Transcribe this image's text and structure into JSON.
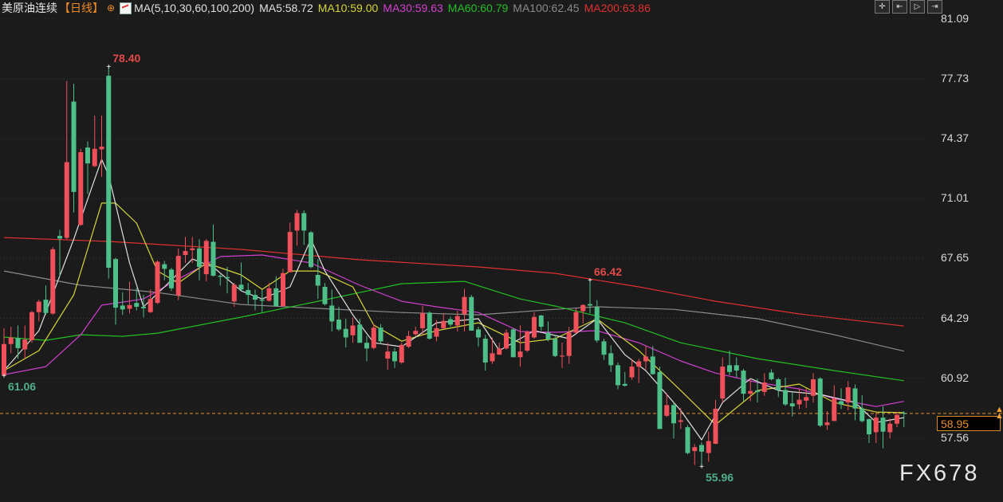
{
  "header": {
    "symbol": "美原油连续",
    "period": "【日线】",
    "ma_params": "MA(5,10,30,60,100,200)",
    "ma5": "MA5:58.72",
    "ma10": "MA10:59.00",
    "ma30": "MA30:59.63",
    "ma60": "MA60:60.79",
    "ma100": "MA100:62.45",
    "ma200": "MA200:63.86"
  },
  "toolbar": {
    "icons": [
      "crosshair-icon",
      "jump-start-icon",
      "play-icon",
      "exit-icon"
    ],
    "glyphs": [
      "✛",
      "⇤",
      "▷",
      "⇥"
    ]
  },
  "last_price": "58.95",
  "watermark": "FX678",
  "colors": {
    "up": "#f0505a",
    "down": "#4fbf8a",
    "ma5": "#e0e0e0",
    "ma10": "#d6d63a",
    "ma30": "#d040d0",
    "ma60": "#22c022",
    "ma100": "#8a8a8a",
    "ma200": "#e03030",
    "last_price": "#e8902c",
    "background": "#1b1b1b"
  },
  "chart_data": {
    "type": "candlestick",
    "y_ticks": [
      "81.09",
      "77.73",
      "74.37",
      "71.01",
      "67.65",
      "64.29",
      "60.92",
      "57.56"
    ],
    "ylim": [
      57.56,
      81.09
    ],
    "grid": "horizontal dotted",
    "annotations": [
      {
        "label": "78.40",
        "candle": 16,
        "price": 78.4,
        "kind": "high"
      },
      {
        "label": "61.06",
        "candle": 1,
        "price": 61.06,
        "kind": "low"
      },
      {
        "label": "66.42",
        "candle": 85,
        "price": 66.42,
        "kind": "high"
      },
      {
        "label": "55.96",
        "candle": 101,
        "price": 55.96,
        "kind": "low"
      }
    ],
    "last_price_line": 58.95,
    "ohlc": [
      [
        61.1,
        63.74,
        61.06,
        62.85
      ],
      [
        62.85,
        63.82,
        62.33,
        63.22
      ],
      [
        63.19,
        63.89,
        62.03,
        62.62
      ],
      [
        62.55,
        63.89,
        62.03,
        63.1
      ],
      [
        63.07,
        64.71,
        62.92,
        64.64
      ],
      [
        64.64,
        65.34,
        64.12,
        65.23
      ],
      [
        65.34,
        66.13,
        64.49,
        64.59
      ],
      [
        64.56,
        68.29,
        64.49,
        68.17
      ],
      [
        68.92,
        69.26,
        66.65,
        68.77
      ],
      [
        68.81,
        77.61,
        68.74,
        73.06
      ],
      [
        76.46,
        77.46,
        70.23,
        71.39
      ],
      [
        69.54,
        73.81,
        69.48,
        73.62
      ],
      [
        73.88,
        74.23,
        71.27,
        72.99
      ],
      [
        72.84,
        75.67,
        72.77,
        73.81
      ],
      [
        73.78,
        75.67,
        72.24,
        73.93
      ],
      [
        77.91,
        78.4,
        66.53,
        67.13
      ],
      [
        67.62,
        67.7,
        63.94,
        64.89
      ],
      [
        65.01,
        65.76,
        64.49,
        64.79
      ],
      [
        64.83,
        66.35,
        64.56,
        65.04
      ],
      [
        65.16,
        65.98,
        64.74,
        64.94
      ],
      [
        64.94,
        65.61,
        64.34,
        64.86
      ],
      [
        64.64,
        65.91,
        64.59,
        65.38
      ],
      [
        65.16,
        67.55,
        65.1,
        67.47
      ],
      [
        67.33,
        67.52,
        66.43,
        67.07
      ],
      [
        67.03,
        67.13,
        65.83,
        65.98
      ],
      [
        65.58,
        68.22,
        65.31,
        67.8
      ],
      [
        67.85,
        68.86,
        67.4,
        68.07
      ],
      [
        68.12,
        68.86,
        67.4,
        68.22
      ],
      [
        68.22,
        68.74,
        66.43,
        67.18
      ],
      [
        66.77,
        68.74,
        66.36,
        68.64
      ],
      [
        68.59,
        69.56,
        66.65,
        66.68
      ],
      [
        66.68,
        66.76,
        66.13,
        66.62
      ],
      [
        66.61,
        67.18,
        65.69,
        66.54
      ],
      [
        65.24,
        66.28,
        64.94,
        66.18
      ],
      [
        66.18,
        67.43,
        65.83,
        65.91
      ],
      [
        65.88,
        66.28,
        65.09,
        65.61
      ],
      [
        65.61,
        65.91,
        64.75,
        65.34
      ],
      [
        65.34,
        65.91,
        64.64,
        65.28
      ],
      [
        65.28,
        66.28,
        65.24,
        65.98
      ],
      [
        65.98,
        66.65,
        64.94,
        64.98
      ],
      [
        64.98,
        67.07,
        64.94,
        66.83
      ],
      [
        66.88,
        69.67,
        66.88,
        69.14
      ],
      [
        69.22,
        70.38,
        68.37,
        70.2
      ],
      [
        70.2,
        70.35,
        68.41,
        69.22
      ],
      [
        69.12,
        69.19,
        67.1,
        67.17
      ],
      [
        66.73,
        67.62,
        65.38,
        66.13
      ],
      [
        66.06,
        66.28,
        65.01,
        65.09
      ],
      [
        65.01,
        65.91,
        63.55,
        64.12
      ],
      [
        64.22,
        64.94,
        63.59,
        63.67
      ],
      [
        63.7,
        64.27,
        62.66,
        63.22
      ],
      [
        63.34,
        64.34,
        62.92,
        63.89
      ],
      [
        63.94,
        64.27,
        62.92,
        62.92
      ],
      [
        62.92,
        63.3,
        61.88,
        62.6
      ],
      [
        62.63,
        63.97,
        62.55,
        63.77
      ],
      [
        63.77,
        63.97,
        62.85,
        63.0
      ],
      [
        62.03,
        62.92,
        61.4,
        62.43
      ],
      [
        62.43,
        62.63,
        61.51,
        61.88
      ],
      [
        61.81,
        62.92,
        61.73,
        62.8
      ],
      [
        62.7,
        63.59,
        62.63,
        63.3
      ],
      [
        63.4,
        63.82,
        63.3,
        63.59
      ],
      [
        63.74,
        64.98,
        63.37,
        64.59
      ],
      [
        64.61,
        64.68,
        63.1,
        63.15
      ],
      [
        63.26,
        64.19,
        63.0,
        63.74
      ],
      [
        63.74,
        64.59,
        63.67,
        64.15
      ],
      [
        64.24,
        64.39,
        63.82,
        63.94
      ],
      [
        63.89,
        64.71,
        63.55,
        64.42
      ],
      [
        64.53,
        65.94,
        63.55,
        65.49
      ],
      [
        65.49,
        65.61,
        63.6,
        63.6
      ],
      [
        63.67,
        63.82,
        62.7,
        63.22
      ],
      [
        63.15,
        63.37,
        61.36,
        61.81
      ],
      [
        61.88,
        63.22,
        61.73,
        62.33
      ],
      [
        62.25,
        62.92,
        62.25,
        62.6
      ],
      [
        62.6,
        63.67,
        62.55,
        63.49
      ],
      [
        63.67,
        63.75,
        62.11,
        62.11
      ],
      [
        62.11,
        63.9,
        61.58,
        62.43
      ],
      [
        62.48,
        63.6,
        62.4,
        63.55
      ],
      [
        63.22,
        64.64,
        63.15,
        64.37
      ],
      [
        64.45,
        64.49,
        63.6,
        63.82
      ],
      [
        63.49,
        64.12,
        63.0,
        63.1
      ],
      [
        63.15,
        63.37,
        62.11,
        62.18
      ],
      [
        62.18,
        62.93,
        61.51,
        62.2
      ],
      [
        62.18,
        63.82,
        61.73,
        63.49
      ],
      [
        63.49,
        64.86,
        63.45,
        64.64
      ],
      [
        64.69,
        65.09,
        64.0,
        65.04
      ],
      [
        65.09,
        66.42,
        64.57,
        65.01
      ],
      [
        64.94,
        65.31,
        62.93,
        63.05
      ],
      [
        63.0,
        63.15,
        61.96,
        62.25
      ],
      [
        62.33,
        62.78,
        61.28,
        61.66
      ],
      [
        61.66,
        61.81,
        60.31,
        60.54
      ],
      [
        60.61,
        61.28,
        60.46,
        60.51
      ],
      [
        60.98,
        62.0,
        60.84,
        61.58
      ],
      [
        61.58,
        62.03,
        60.66,
        61.88
      ],
      [
        61.88,
        62.77,
        61.43,
        62.15
      ],
      [
        62.15,
        62.74,
        61.13,
        61.16
      ],
      [
        61.28,
        61.58,
        58.08,
        58.08
      ],
      [
        58.82,
        60.09,
        58.75,
        59.42
      ],
      [
        59.42,
        59.57,
        57.55,
        58.4
      ],
      [
        58.48,
        59.27,
        58.08,
        58.57
      ],
      [
        58.18,
        58.3,
        56.66,
        56.73
      ],
      [
        56.84,
        57.23,
        56.06,
        57.06
      ],
      [
        57.18,
        57.33,
        55.96,
        56.81
      ],
      [
        56.73,
        57.93,
        56.24,
        57.4
      ],
      [
        57.25,
        59.72,
        57.23,
        59.22
      ],
      [
        59.79,
        62.1,
        59.57,
        61.58
      ],
      [
        61.66,
        62.48,
        61.1,
        61.28
      ],
      [
        61.66,
        62.1,
        60.98,
        61.36
      ],
      [
        61.36,
        61.46,
        59.64,
        60.06
      ],
      [
        60.06,
        60.91,
        59.64,
        60.21
      ],
      [
        60.24,
        60.91,
        59.57,
        60.16
      ],
      [
        60.16,
        61.21,
        59.94,
        60.69
      ],
      [
        61.25,
        61.43,
        60.81,
        60.87
      ],
      [
        60.87,
        60.96,
        59.87,
        60.27
      ],
      [
        60.27,
        60.96,
        59.38,
        59.46
      ],
      [
        59.52,
        60.16,
        58.78,
        59.35
      ],
      [
        59.46,
        60.36,
        59.2,
        59.72
      ],
      [
        59.67,
        60.36,
        59.27,
        59.87
      ],
      [
        59.94,
        61.21,
        59.57,
        60.87
      ],
      [
        60.91,
        60.99,
        58.18,
        58.27
      ],
      [
        58.3,
        59.08,
        58.03,
        58.45
      ],
      [
        58.53,
        60.54,
        58.53,
        59.79
      ],
      [
        59.64,
        60.36,
        59.2,
        59.46
      ],
      [
        59.57,
        60.76,
        59.12,
        60.42
      ],
      [
        60.36,
        60.58,
        58.57,
        59.23
      ],
      [
        59.23,
        59.97,
        58.45,
        58.52
      ],
      [
        58.63,
        58.67,
        57.29,
        57.78
      ],
      [
        57.9,
        58.97,
        57.29,
        58.72
      ],
      [
        58.72,
        59.35,
        56.99,
        57.93
      ],
      [
        57.9,
        58.67,
        57.56,
        58.38
      ],
      [
        58.38,
        59.05,
        58.18,
        58.87
      ],
      [
        58.99,
        59.08,
        58.18,
        58.95
      ]
    ],
    "moving_averages": {
      "ma200": [
        [
          1,
          68.83
        ],
        [
          16,
          68.61
        ],
        [
          35,
          68.16
        ],
        [
          52,
          67.58
        ],
        [
          69,
          67.18
        ],
        [
          80,
          66.82
        ],
        [
          92,
          66.06
        ],
        [
          103,
          65.25
        ],
        [
          115,
          64.54
        ],
        [
          130,
          63.86
        ]
      ],
      "ma100": [
        [
          1,
          66.95
        ],
        [
          12,
          66.15
        ],
        [
          17,
          65.97
        ],
        [
          23,
          65.74
        ],
        [
          35,
          65.07
        ],
        [
          46,
          64.85
        ],
        [
          58,
          64.62
        ],
        [
          69,
          64.49
        ],
        [
          80,
          64.8
        ],
        [
          86,
          64.94
        ],
        [
          97,
          64.8
        ],
        [
          109,
          64.27
        ],
        [
          120,
          63.37
        ],
        [
          130,
          62.45
        ]
      ],
      "ma60": [
        [
          1,
          63.24
        ],
        [
          7,
          63.06
        ],
        [
          12,
          63.37
        ],
        [
          18,
          63.28
        ],
        [
          23,
          63.46
        ],
        [
          35,
          64.36
        ],
        [
          46,
          65.25
        ],
        [
          52,
          65.74
        ],
        [
          58,
          66.24
        ],
        [
          67,
          66.37
        ],
        [
          75,
          65.38
        ],
        [
          80,
          64.98
        ],
        [
          90,
          64.04
        ],
        [
          98,
          62.92
        ],
        [
          109,
          62.03
        ],
        [
          120,
          61.36
        ],
        [
          130,
          60.79
        ]
      ],
      "ma30": [
        [
          1,
          61.13
        ],
        [
          7,
          61.58
        ],
        [
          12,
          63.37
        ],
        [
          15,
          65.03
        ],
        [
          21,
          65.38
        ],
        [
          26,
          66.5
        ],
        [
          32,
          67.76
        ],
        [
          38,
          67.85
        ],
        [
          45,
          67.4
        ],
        [
          52,
          66.15
        ],
        [
          58,
          65.25
        ],
        [
          63,
          64.94
        ],
        [
          69,
          64.62
        ],
        [
          75,
          63.55
        ],
        [
          80,
          63.51
        ],
        [
          86,
          63.6
        ],
        [
          92,
          62.92
        ],
        [
          98,
          61.9
        ],
        [
          103,
          61.22
        ],
        [
          109,
          60.69
        ],
        [
          115,
          60.33
        ],
        [
          120,
          59.79
        ],
        [
          126,
          59.34
        ],
        [
          130,
          59.63
        ]
      ],
      "ma10": [
        [
          1,
          61.36
        ],
        [
          6,
          62.48
        ],
        [
          11,
          65.61
        ],
        [
          15,
          70.76
        ],
        [
          17,
          70.76
        ],
        [
          20,
          69.64
        ],
        [
          23,
          66.95
        ],
        [
          26,
          66.28
        ],
        [
          30,
          67.4
        ],
        [
          35,
          66.73
        ],
        [
          38,
          65.92
        ],
        [
          42,
          66.95
        ],
        [
          46,
          66.95
        ],
        [
          51,
          66.06
        ],
        [
          54,
          63.91
        ],
        [
          58,
          63.01
        ],
        [
          63,
          63.6
        ],
        [
          69,
          64.04
        ],
        [
          75,
          62.92
        ],
        [
          80,
          63.15
        ],
        [
          86,
          64.27
        ],
        [
          92,
          62.48
        ],
        [
          98,
          60.24
        ],
        [
          103,
          58.32
        ],
        [
          109,
          60.24
        ],
        [
          115,
          60.6
        ],
        [
          120,
          59.57
        ],
        [
          126,
          59.03
        ],
        [
          130,
          59.0
        ]
      ],
      "ma5": [
        [
          1,
          61.36
        ],
        [
          6,
          63.6
        ],
        [
          11,
          68.74
        ],
        [
          15,
          73.22
        ],
        [
          16,
          72.32
        ],
        [
          19,
          67.4
        ],
        [
          21,
          64.94
        ],
        [
          24,
          66.06
        ],
        [
          28,
          67.62
        ],
        [
          31,
          67.17
        ],
        [
          35,
          65.83
        ],
        [
          38,
          65.38
        ],
        [
          42,
          66.06
        ],
        [
          45,
          68.74
        ],
        [
          47,
          66.95
        ],
        [
          51,
          64.49
        ],
        [
          54,
          62.92
        ],
        [
          58,
          62.7
        ],
        [
          63,
          64.04
        ],
        [
          69,
          64.27
        ],
        [
          72,
          62.48
        ],
        [
          77,
          63.6
        ],
        [
          82,
          63.15
        ],
        [
          86,
          64.27
        ],
        [
          90,
          62.25
        ],
        [
          93,
          61.36
        ],
        [
          98,
          59.12
        ],
        [
          101,
          57.47
        ],
        [
          104,
          59.57
        ],
        [
          108,
          60.91
        ],
        [
          112,
          60.24
        ],
        [
          118,
          60.02
        ],
        [
          123,
          59.57
        ],
        [
          126,
          58.45
        ],
        [
          130,
          58.72
        ]
      ]
    }
  }
}
